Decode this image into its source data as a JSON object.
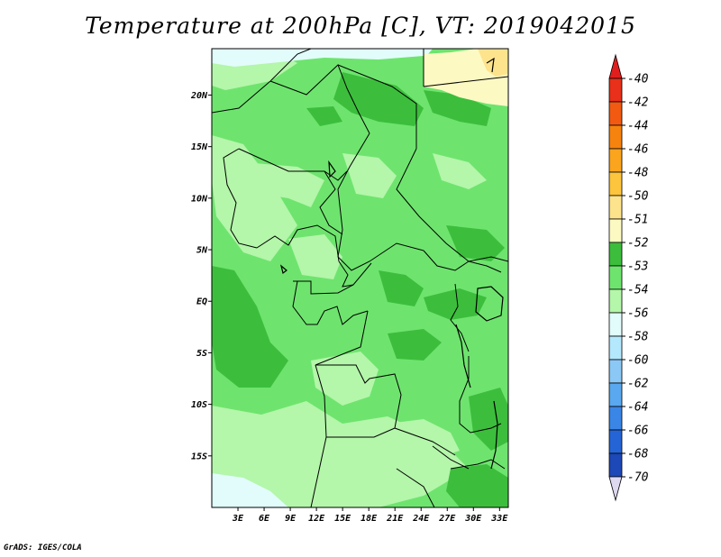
{
  "title": "Temperature at 200hPa [C], VT: 2019042015",
  "credit": "GrADS: IGES/COLA",
  "map": {
    "lon_range": [
      0,
      34
    ],
    "lat_range": [
      -20,
      24.5
    ],
    "lat_ticks": [
      {
        "value": 20,
        "label": "20N"
      },
      {
        "value": 15,
        "label": "15N"
      },
      {
        "value": 10,
        "label": "10N"
      },
      {
        "value": 5,
        "label": "5N"
      },
      {
        "value": 0,
        "label": "EQ"
      },
      {
        "value": -5,
        "label": "5S"
      },
      {
        "value": -10,
        "label": "10S"
      },
      {
        "value": -15,
        "label": "15S"
      }
    ],
    "lon_ticks": [
      {
        "value": 3,
        "label": "3E"
      },
      {
        "value": 6,
        "label": "6E"
      },
      {
        "value": 9,
        "label": "9E"
      },
      {
        "value": 12,
        "label": "12E"
      },
      {
        "value": 15,
        "label": "15E"
      },
      {
        "value": 18,
        "label": "18E"
      },
      {
        "value": 21,
        "label": "21E"
      },
      {
        "value": 24,
        "label": "24E"
      },
      {
        "value": 27,
        "label": "27E"
      },
      {
        "value": 30,
        "label": "30E"
      },
      {
        "value": 33,
        "label": "33E"
      }
    ]
  },
  "colorbar": {
    "levels": [
      {
        "label": "-40",
        "color": "#e8301a"
      },
      {
        "label": "-42",
        "color": "#f25a12"
      },
      {
        "label": "-44",
        "color": "#f7830f"
      },
      {
        "label": "-46",
        "color": "#fba41e"
      },
      {
        "label": "-48",
        "color": "#fdc53e"
      },
      {
        "label": "-50",
        "color": "#fde38c"
      },
      {
        "label": "-51",
        "color": "#fdf9c3"
      },
      {
        "label": "-52",
        "color": "#3cbe3c"
      },
      {
        "label": "-53",
        "color": "#6ee46e"
      },
      {
        "label": "-54",
        "color": "#b4f6aa"
      },
      {
        "label": "-56",
        "color": "#e1fcfb"
      },
      {
        "label": "-58",
        "color": "#b4e8fc"
      },
      {
        "label": "-60",
        "color": "#8cc8f5"
      },
      {
        "label": "-62",
        "color": "#5aa8ef"
      },
      {
        "label": "-64",
        "color": "#3a86e6"
      },
      {
        "label": "-66",
        "color": "#2464d6"
      },
      {
        "label": "-68",
        "color": "#1c48b8"
      },
      {
        "label": "-70",
        "color": "#0c1c78"
      }
    ],
    "bottom_color": "#ded8f0",
    "top_color": "#e01e1e"
  },
  "colors": {
    "t52": "#3cbe3c",
    "t53": "#6ee46e",
    "t54": "#b4f6aa",
    "t56": "#e1fcfb",
    "t51": "#fdf9c3",
    "t50": "#fde38c"
  }
}
